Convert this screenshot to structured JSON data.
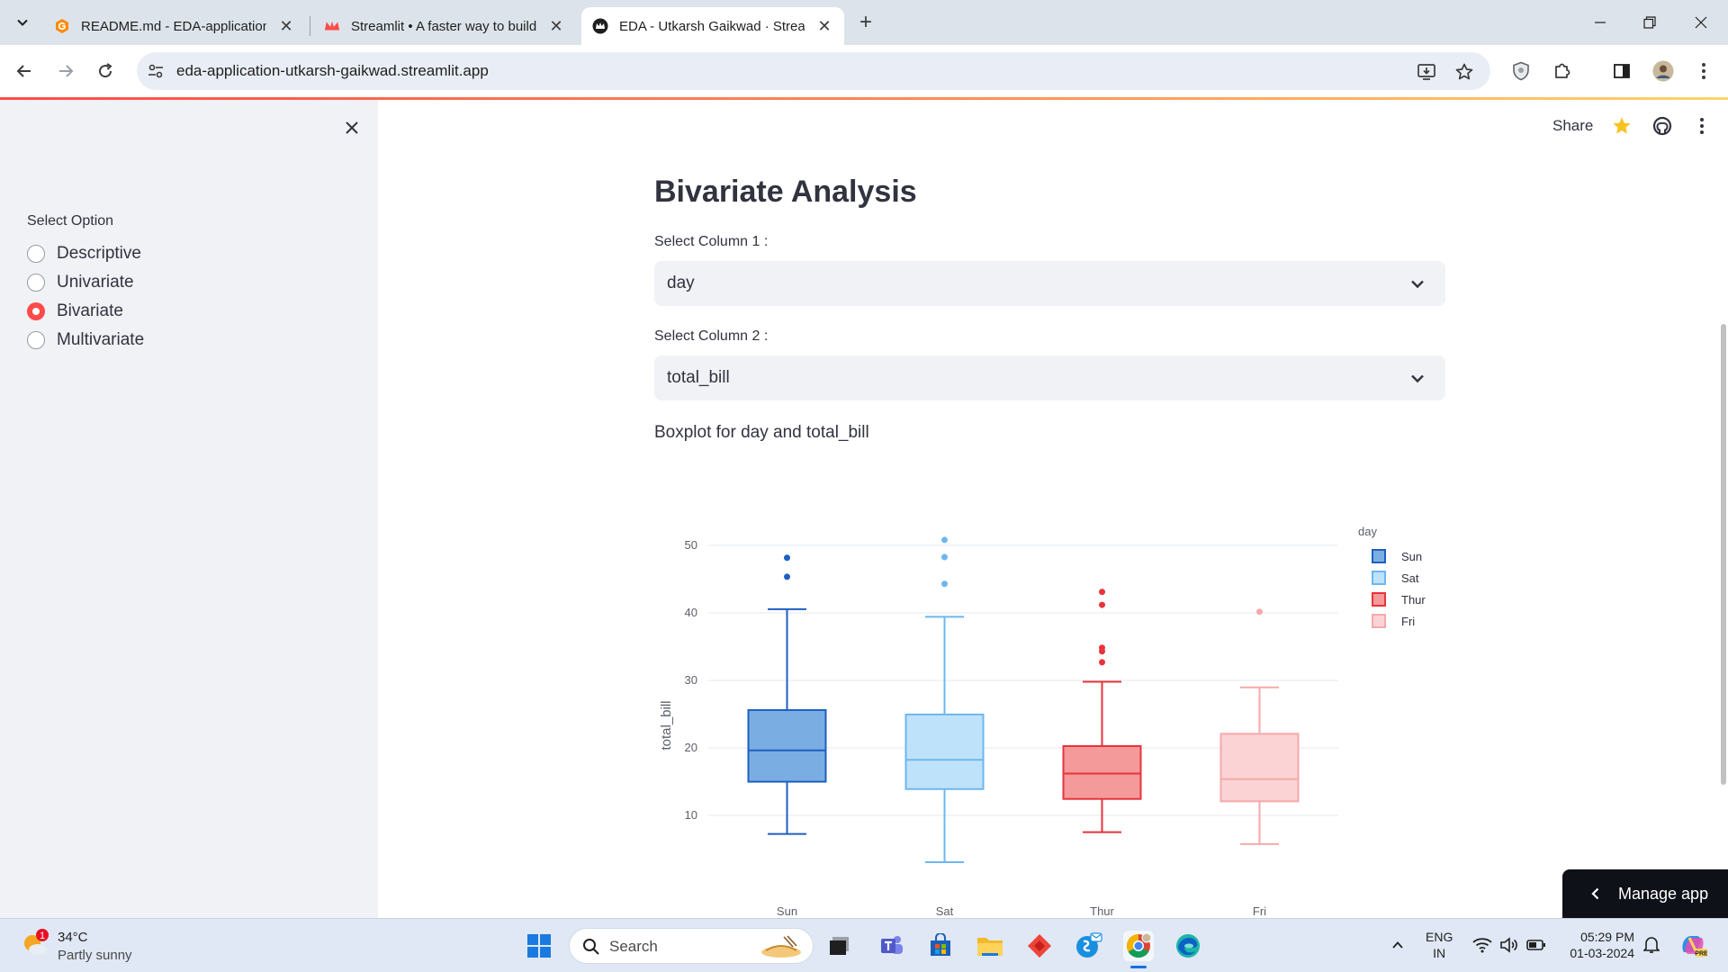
{
  "browser": {
    "tabs": [
      {
        "title": "README.md - EDA-application",
        "active": false
      },
      {
        "title": "Streamlit • A faster way to build",
        "active": false
      },
      {
        "title": "EDA - Utkarsh Gaikwad · Stream",
        "active": true
      }
    ],
    "url": "eda-application-utkarsh-gaikwad.streamlit.app"
  },
  "sidebar": {
    "label": "Select Option",
    "options": [
      {
        "label": "Descriptive",
        "checked": false
      },
      {
        "label": "Univariate",
        "checked": false
      },
      {
        "label": "Bivariate",
        "checked": true
      },
      {
        "label": "Multivariate",
        "checked": false
      }
    ]
  },
  "header": {
    "share_label": "Share"
  },
  "main": {
    "title": "Bivariate Analysis",
    "column1": {
      "label": "Select Column 1 :",
      "value": "day"
    },
    "column2": {
      "label": "Select Column 2 :",
      "value": "total_bill"
    },
    "caption": "Boxplot for day and total_bill"
  },
  "chart_data": {
    "type": "box",
    "categories": [
      "Sun",
      "Sat",
      "Thur",
      "Fri"
    ],
    "ylabel": "total_bill",
    "xlabel": "",
    "ylim": [
      0,
      52
    ],
    "yticks": [
      10,
      20,
      30,
      40,
      50
    ],
    "grid": true,
    "legend": {
      "title": "day",
      "placement": "top-right",
      "entries": [
        "Sun",
        "Sat",
        "Thur",
        "Fri"
      ]
    },
    "series": [
      {
        "name": "Sun",
        "color": "#1f5fc0",
        "fill": "#7aaee3",
        "min": 7.25,
        "q1": 14.99,
        "median": 19.63,
        "q3": 25.6,
        "max": 40.55,
        "outliers": [
          45.35,
          48.17
        ]
      },
      {
        "name": "Sat",
        "color": "#6db7ef",
        "fill": "#bfe2fb",
        "min": 3.07,
        "q1": 13.9,
        "median": 18.24,
        "q3": 24.95,
        "max": 39.42,
        "outliers": [
          44.3,
          48.27,
          50.81
        ]
      },
      {
        "name": "Thur",
        "color": "#e8333d",
        "fill": "#f59a9a",
        "min": 7.51,
        "q1": 12.44,
        "median": 16.2,
        "q3": 20.27,
        "max": 29.8,
        "outliers": [
          32.68,
          34.3,
          34.83,
          41.19,
          43.11
        ]
      },
      {
        "name": "Fri",
        "color": "#f4a9ab",
        "fill": "#fcd3d4",
        "min": 5.75,
        "q1": 12.09,
        "median": 15.38,
        "q3": 22.09,
        "max": 28.97,
        "outliers": [
          40.17
        ]
      }
    ]
  },
  "manage_app": {
    "label": "Manage app"
  },
  "taskbar": {
    "weather": {
      "temp": "34°C",
      "desc": "Partly sunny",
      "badge": "1"
    },
    "search_label": "Search",
    "lang_line1": "ENG",
    "lang_line2": "IN",
    "time": "05:29 PM",
    "date": "01-03-2024"
  }
}
